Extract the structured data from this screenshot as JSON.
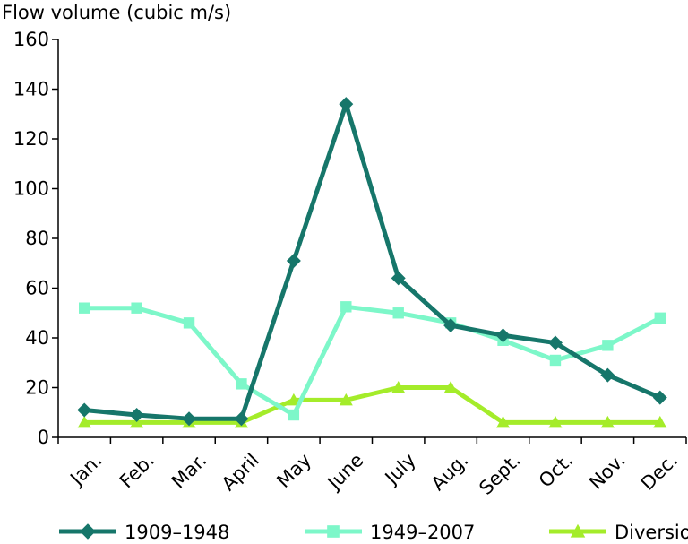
{
  "chart_data": {
    "type": "line",
    "title": "",
    "xlabel": "",
    "ylabel": "Flow volume (cubic m/s)",
    "categories": [
      "Jan.",
      "Feb.",
      "Mar.",
      "April",
      "May",
      "June",
      "July",
      "Aug.",
      "Sept.",
      "Oct.",
      "Nov.",
      "Dec."
    ],
    "ylim": [
      0,
      160
    ],
    "yticks": [
      0,
      20,
      40,
      60,
      80,
      100,
      120,
      140,
      160
    ],
    "grid": false,
    "legend_position": "bottom",
    "series": [
      {
        "name": "1909–1948",
        "color": "#16766a",
        "marker": "diamond",
        "values": [
          11,
          9,
          7.5,
          7.5,
          71,
          134,
          64,
          45,
          41,
          38,
          25,
          16
        ]
      },
      {
        "name": "1949–2007",
        "color": "#7df7c9",
        "marker": "square",
        "values": [
          52,
          52,
          46,
          21.5,
          9,
          52.5,
          50,
          46,
          39,
          31,
          37,
          48
        ]
      },
      {
        "name": "Diversion",
        "color": "#a4ec2a",
        "marker": "triangle",
        "values": [
          6,
          6,
          6,
          6,
          15,
          15,
          20,
          20,
          6,
          6,
          6,
          6
        ]
      }
    ]
  }
}
